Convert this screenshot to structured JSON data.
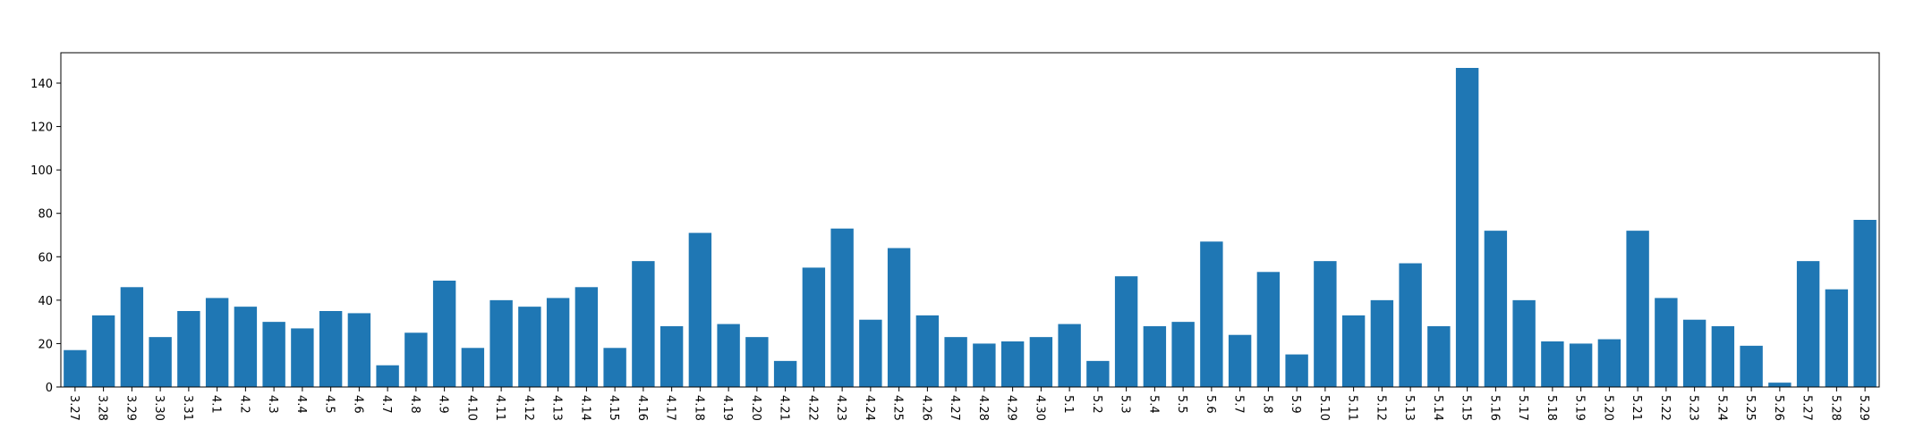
{
  "chart_data": {
    "type": "bar",
    "title": "",
    "xlabel": "",
    "ylabel": "",
    "grid": false,
    "ylim": [
      0,
      154
    ],
    "yticks": [
      0,
      20,
      40,
      60,
      80,
      100,
      120,
      140
    ],
    "bar_color": "#1f77b4",
    "categories": [
      "3.27",
      "3.28",
      "3.29",
      "3.30",
      "3.31",
      "4.1",
      "4.2",
      "4.3",
      "4.4",
      "4.5",
      "4.6",
      "4.7",
      "4.8",
      "4.9",
      "4.10",
      "4.11",
      "4.12",
      "4.13",
      "4.14",
      "4.15",
      "4.16",
      "4.17",
      "4.18",
      "4.19",
      "4.20",
      "4.21",
      "4.22",
      "4.23",
      "4.24",
      "4.25",
      "4.26",
      "4.27",
      "4.28",
      "4.29",
      "4.30",
      "5.1",
      "5.2",
      "5.3",
      "5.4",
      "5.5",
      "5.6",
      "5.7",
      "5.8",
      "5.9",
      "5.10",
      "5.11",
      "5.12",
      "5.13",
      "5.14",
      "5.15",
      "5.16",
      "5.17",
      "5.18",
      "5.19",
      "5.20",
      "5.21",
      "5.22",
      "5.23",
      "5.24",
      "5.25",
      "5.26",
      "5.27",
      "5.28",
      "5.29"
    ],
    "values": [
      17,
      33,
      46,
      23,
      35,
      41,
      37,
      30,
      27,
      35,
      34,
      10,
      25,
      49,
      18,
      40,
      37,
      41,
      46,
      18,
      58,
      28,
      71,
      29,
      23,
      12,
      55,
      73,
      31,
      64,
      33,
      23,
      20,
      21,
      23,
      29,
      12,
      51,
      28,
      30,
      67,
      24,
      53,
      15,
      58,
      33,
      40,
      57,
      28,
      147,
      72,
      40,
      21,
      20,
      22,
      72,
      41,
      31,
      28,
      19,
      2,
      58,
      45,
      77
    ]
  }
}
